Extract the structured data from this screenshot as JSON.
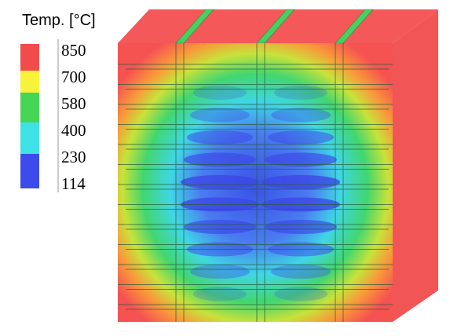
{
  "legend": {
    "title": "Temp. [°C]",
    "labels": [
      "850",
      "700",
      "580",
      "400",
      "230",
      "114"
    ]
  }
}
